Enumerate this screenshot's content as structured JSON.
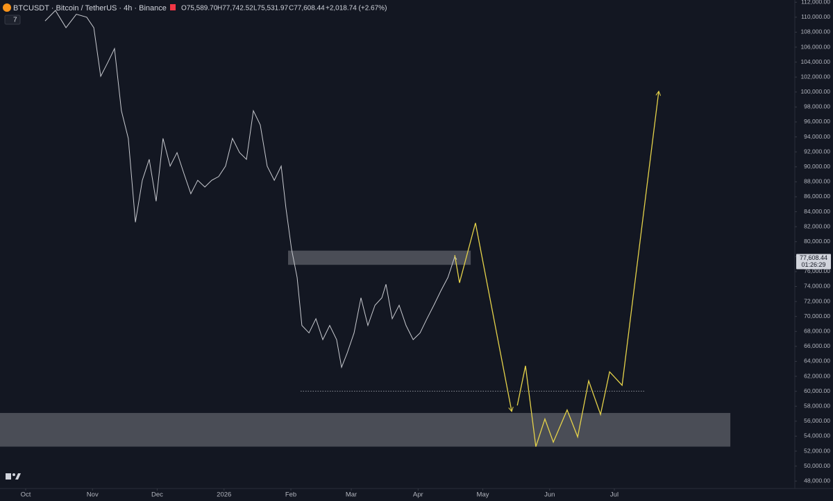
{
  "chart_data": {
    "type": "line",
    "header": {
      "symbol": "BTCUSDT · Bitcoin / TetherUS · 4h · Binance",
      "open": "O75,589.70",
      "high": "H77,742.52",
      "low": "L75,531.97",
      "close": "C77,608.44",
      "change": "+2,018.74 (+2.67%)",
      "indicator": "7"
    },
    "xlim": [
      -11.9,
      356.7
    ],
    "ylim": [
      47000,
      112300
    ],
    "xticks": [
      {
        "value": 0,
        "label": "Oct"
      },
      {
        "value": 31,
        "label": "Nov"
      },
      {
        "value": 61,
        "label": "Dec"
      },
      {
        "value": 92,
        "label": "2026"
      },
      {
        "value": 123,
        "label": "Feb"
      },
      {
        "value": 151,
        "label": "Mar"
      },
      {
        "value": 182,
        "label": "Apr"
      },
      {
        "value": 212,
        "label": "May"
      },
      {
        "value": 243,
        "label": "Jun"
      },
      {
        "value": 273,
        "label": "Jul"
      }
    ],
    "yticks": [
      {
        "value": 48000,
        "label": "48,000.00"
      },
      {
        "value": 50000,
        "label": "50,000.00"
      },
      {
        "value": 52000,
        "label": "52,000.00"
      },
      {
        "value": 54000,
        "label": "54,000.00"
      },
      {
        "value": 56000,
        "label": "56,000.00"
      },
      {
        "value": 58000,
        "label": "58,000.00"
      },
      {
        "value": 60000,
        "label": "60,000.00"
      },
      {
        "value": 62000,
        "label": "62,000.00"
      },
      {
        "value": 64000,
        "label": "64,000.00"
      },
      {
        "value": 66000,
        "label": "66,000.00"
      },
      {
        "value": 68000,
        "label": "68,000.00"
      },
      {
        "value": 70000,
        "label": "70,000.00"
      },
      {
        "value": 72000,
        "label": "72,000.00"
      },
      {
        "value": 74000,
        "label": "74,000.00"
      },
      {
        "value": 76000,
        "label": "76,000.00"
      },
      {
        "value": 78000,
        "label": "78,000.00"
      },
      {
        "value": 80000,
        "label": "80,000.00"
      },
      {
        "value": 82000,
        "label": "82,000.00"
      },
      {
        "value": 84000,
        "label": "84,000.00"
      },
      {
        "value": 86000,
        "label": "86,000.00"
      },
      {
        "value": 88000,
        "label": "88,000.00"
      },
      {
        "value": 90000,
        "label": "90,000.00"
      },
      {
        "value": 92000,
        "label": "92,000.00"
      },
      {
        "value": 94000,
        "label": "94,000.00"
      },
      {
        "value": 96000,
        "label": "96,000.00"
      },
      {
        "value": 98000,
        "label": "98,000.00"
      },
      {
        "value": 100000,
        "label": "100,000.00"
      },
      {
        "value": 102000,
        "label": "102,000.00"
      },
      {
        "value": 104000,
        "label": "104,000.00"
      },
      {
        "value": 106000,
        "label": "106,000.00"
      },
      {
        "value": 108000,
        "label": "108,000.00"
      },
      {
        "value": 110000,
        "label": "110,000.00"
      },
      {
        "value": 112000,
        "label": "112,000.00"
      }
    ],
    "zones": [
      {
        "x": [
          121.7,
          206.4
        ],
        "y": [
          76900,
          78800
        ],
        "color": "#5d6068"
      },
      {
        "x": [
          -11.9,
          326.8
        ],
        "y": [
          52600,
          57100
        ],
        "color": "#5d6068"
      }
    ],
    "level": {
      "x": [
        127.5,
        287.5
      ],
      "value": 60000,
      "color": "#b2b5be"
    },
    "series": [
      {
        "color": "#c8cad0",
        "x": [
          9.0,
          13.8,
          18.7,
          23.5,
          28.3,
          31.6,
          34.8,
          38.0,
          41.2,
          44.4,
          47.6,
          50.9,
          54.1,
          57.3,
          60.5,
          63.7,
          67.0,
          70.2,
          73.4,
          76.6,
          79.8,
          83.1,
          86.3,
          89.5,
          92.7,
          95.9,
          99.2,
          102.4,
          105.6,
          108.8,
          112.0,
          115.3,
          118.5,
          120.7,
          123.3,
          125.9,
          128.1,
          131.4,
          134.6,
          137.8,
          141.0,
          144.2,
          146.5,
          149.1,
          152.3,
          155.5,
          158.7,
          162.0,
          165.2,
          167.1,
          170.0,
          173.2,
          176.4,
          179.7,
          182.9,
          186.1,
          189.3,
          192.5,
          195.8,
          199.0,
          199.9
        ],
        "values": [
          109500,
          110900,
          108600,
          110400,
          110000,
          108600,
          102100,
          103900,
          105800,
          97500,
          93800,
          82600,
          88200,
          91000,
          85400,
          93800,
          90100,
          91900,
          89100,
          86400,
          88200,
          87300,
          88200,
          88700,
          90100,
          93800,
          91900,
          91000,
          97500,
          95600,
          90100,
          88200,
          90100,
          84500,
          79000,
          75200,
          68800,
          67800,
          69700,
          66900,
          68800,
          66900,
          63200,
          65100,
          67800,
          72500,
          68800,
          71500,
          72500,
          74300,
          69700,
          71500,
          68800,
          66900,
          67800,
          69700,
          71500,
          73400,
          75200,
          78000,
          77608.44
        ]
      },
      {
        "color": "#e6d34a",
        "x": [
          199.0,
          201.2,
          208.6,
          225.4,
          226.7,
          228.0,
          231.8,
          236.6,
          240.8,
          244.7,
          251.1,
          256.0,
          261.1,
          266.6,
          270.8,
          276.6,
          293.6
        ],
        "values": [
          78200,
          74500,
          82500,
          57300,
          null,
          58100,
          63400,
          52600,
          56300,
          53200,
          57500,
          53900,
          61400,
          56900,
          62600,
          60800,
          100100
        ]
      }
    ],
    "last_price": {
      "value": 77608.44,
      "label": "77,608.44",
      "countdown": "01:26:29"
    }
  }
}
